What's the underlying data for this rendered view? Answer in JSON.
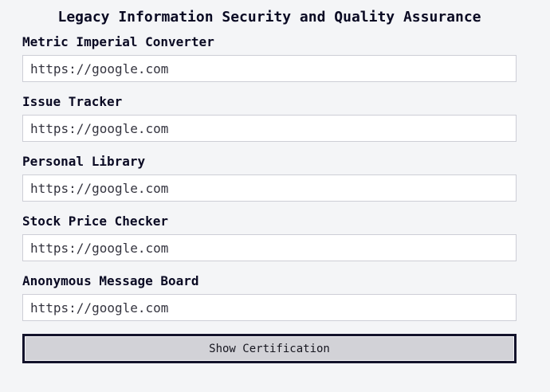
{
  "page": {
    "title": "Legacy Information Security and Quality Assurance"
  },
  "form": {
    "fields": [
      {
        "label": "Metric Imperial Converter",
        "value": "https://google.com"
      },
      {
        "label": "Issue Tracker",
        "value": "https://google.com"
      },
      {
        "label": "Personal Library",
        "value": "https://google.com"
      },
      {
        "label": "Stock Price Checker",
        "value": "https://google.com"
      },
      {
        "label": "Anonymous Message Board",
        "value": "https://google.com"
      }
    ],
    "submit_label": "Show Certification"
  },
  "colors": {
    "background": "#f4f5f7",
    "text": "#0a0a23",
    "input_border": "#cdced6",
    "input_background": "#ffffff",
    "input_text": "#34343f",
    "button_background": "#d2d2d7",
    "button_border": "#13132b"
  }
}
